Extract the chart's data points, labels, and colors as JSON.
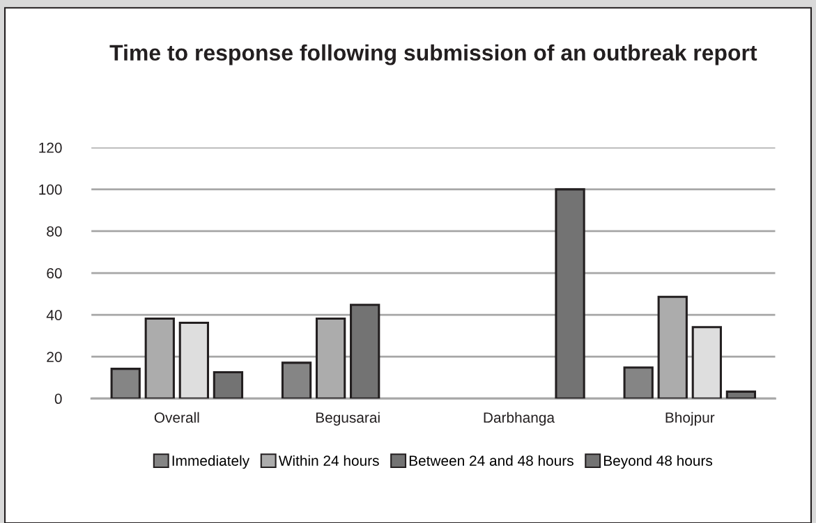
{
  "chart_data": {
    "type": "bar",
    "title": "Time to response following submission of an outbreak report",
    "categories": [
      "Overall",
      "Begusarai",
      "Darbhanga",
      "Bhojpur"
    ],
    "series": [
      {
        "name": "Immediately",
        "color": "#858585",
        "values": [
          14.2,
          17.1,
          null,
          14.8
        ]
      },
      {
        "name": "Within 24 hours",
        "color": "#acacac",
        "values": [
          38.2,
          38.2,
          null,
          48.6
        ]
      },
      {
        "name": "Between 24 and 48 hours",
        "color": "#737373",
        "colors": [
          "#dedede",
          "#737373",
          null,
          "#dedede"
        ],
        "values": [
          36.2,
          44.8,
          null,
          34.1
        ]
      },
      {
        "name": "Beyond 48 hours",
        "color": "#737373",
        "values": [
          12.6,
          null,
          100,
          3.3
        ]
      }
    ],
    "ylim": [
      0,
      120
    ],
    "yticks": [
      0,
      20,
      40,
      60,
      80,
      100,
      120
    ],
    "grid": "y",
    "legend": "bottom"
  }
}
